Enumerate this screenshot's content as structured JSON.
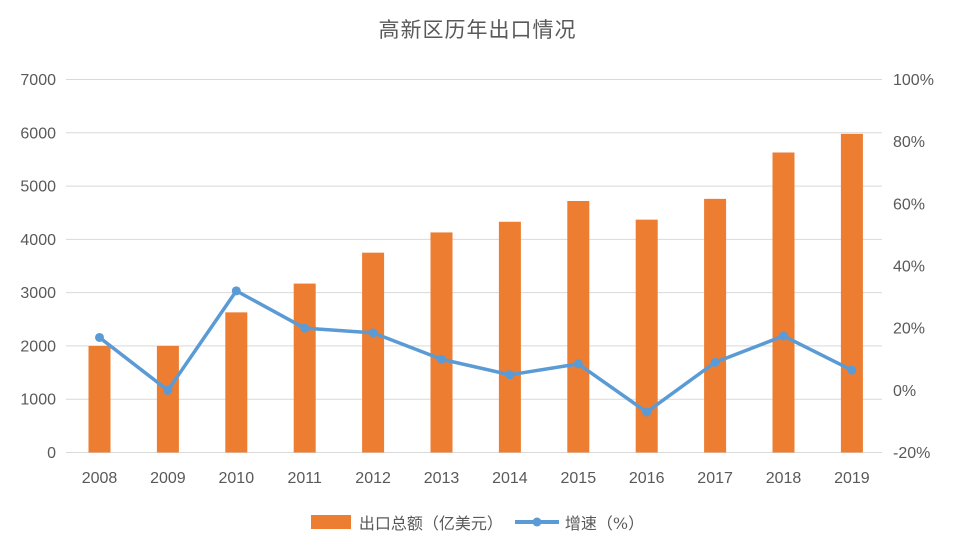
{
  "chart_data": {
    "type": "combo-bar-line",
    "title": "高新区历年出口情况",
    "categories": [
      "2008",
      "2009",
      "2010",
      "2011",
      "2012",
      "2013",
      "2014",
      "2015",
      "2016",
      "2017",
      "2018",
      "2019"
    ],
    "series": [
      {
        "name": "出口总额（亿美元）",
        "type": "bar",
        "axis": "left",
        "color": "#ED7D31",
        "values": [
          2000,
          2000,
          2630,
          3170,
          3750,
          4130,
          4330,
          4720,
          4370,
          4760,
          5630,
          5980
        ]
      },
      {
        "name": "增速（%）",
        "type": "line",
        "axis": "right",
        "color": "#5B9BD5",
        "values": [
          17,
          0,
          32,
          20,
          18.5,
          10,
          5,
          8.5,
          -7,
          9,
          17.5,
          6.5
        ]
      }
    ],
    "left_axis": {
      "min": 0,
      "max": 7000,
      "tick_values": [
        0,
        1000,
        2000,
        3000,
        4000,
        5000,
        6000,
        7000
      ],
      "tick_labels": [
        "0",
        "1000",
        "2000",
        "3000",
        "4000",
        "5000",
        "6000",
        "7000"
      ]
    },
    "right_axis": {
      "min": -20,
      "max": 100,
      "tick_values": [
        -20,
        0,
        20,
        40,
        60,
        80,
        100
      ],
      "tick_labels": [
        "-20%",
        "0%",
        "20%",
        "40%",
        "60%",
        "80%",
        "100%"
      ]
    },
    "grid": true,
    "legend_position": "bottom"
  },
  "colors": {
    "background": "#FFFFFF",
    "grid": "#D9D9D9",
    "axis_text": "#595959",
    "title_text": "#595959",
    "bar": "#ED7D31",
    "line": "#5B9BD5"
  }
}
